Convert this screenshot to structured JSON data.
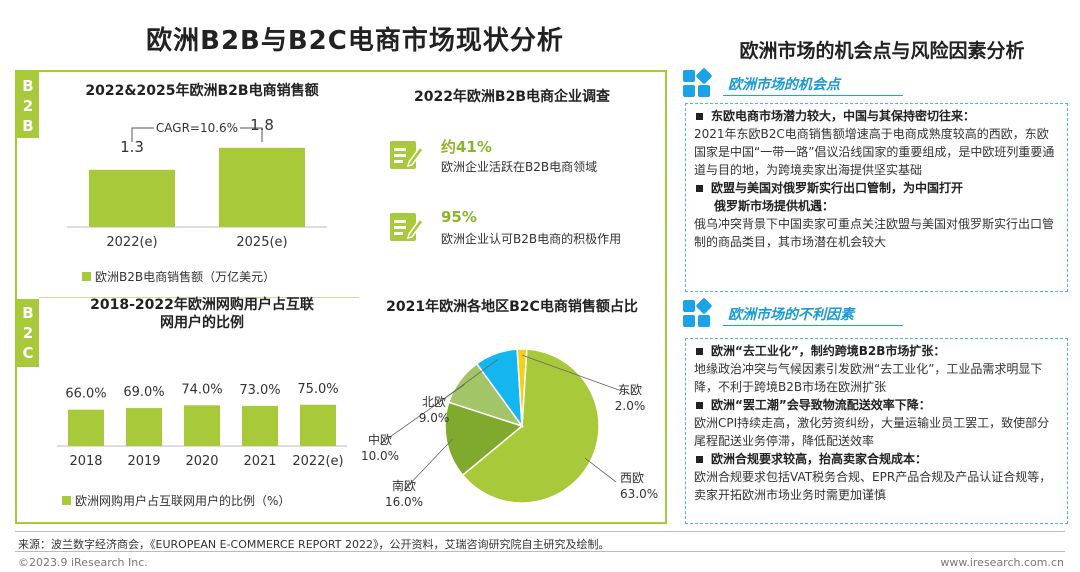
{
  "main_title": "欧洲B2B与B2C电商市场现状分析",
  "right_title": "欧洲市场的机会点与风险因素分析",
  "side_labels": {
    "b2b": [
      "B",
      "2",
      "B"
    ],
    "b2c": [
      "B",
      "2",
      "C"
    ]
  },
  "chart_data": [
    {
      "id": "b2b-sales",
      "type": "bar",
      "title": "2022&2025年欧洲B2B电商销售额",
      "categories": [
        "2022(e)",
        "2025(e)"
      ],
      "values": [
        1.3,
        1.8
      ],
      "value_labels": [
        "1.3",
        "1.8"
      ],
      "annotation": "CAGR=10.6%",
      "legend": "欧洲B2B电商销售额（万亿美元）",
      "ylim": [
        0,
        2.5
      ],
      "color": "#a8c93a"
    },
    {
      "id": "b2c-penetration",
      "type": "bar",
      "title": "2018-2022年欧洲网购用户占互联网用户的比例",
      "title_lines": [
        "2018-2022年欧洲网购用户占互联",
        "网用户的比例"
      ],
      "categories": [
        "2018",
        "2019",
        "2020",
        "2021",
        "2022(e)"
      ],
      "values": [
        66.0,
        69.0,
        74.0,
        73.0,
        75.0
      ],
      "value_labels": [
        "66.0%",
        "69.0%",
        "74.0%",
        "73.0%",
        "75.0%"
      ],
      "legend": "欧洲网购用户占互联网用户的比例（%）",
      "ylim": [
        0,
        100
      ],
      "color": "#a8c93a"
    },
    {
      "id": "b2c-region-share",
      "type": "pie",
      "title": "2021年欧洲各地区B2C电商销售额占比",
      "slices": [
        {
          "name": "西欧",
          "value": 63.0,
          "label": "63.0%",
          "color": "#a8c93a"
        },
        {
          "name": "南欧",
          "value": 16.0,
          "label": "16.0%",
          "color": "#7faa2e"
        },
        {
          "name": "中欧",
          "value": 10.0,
          "label": "10.0%",
          "color": "#a2c567"
        },
        {
          "name": "北欧",
          "value": 9.0,
          "label": "9.0%",
          "color": "#13b6ef"
        },
        {
          "name": "东欧",
          "value": 2.0,
          "label": "2.0%",
          "color": "#f1d21a"
        }
      ]
    }
  ],
  "survey": {
    "title": "2022年欧洲B2B电商企业调查",
    "items": [
      {
        "pct": "约41%",
        "text": "欧洲企业活跃在B2B电商领域"
      },
      {
        "pct": "95%",
        "text": "欧洲企业认可B2B电商的积极作用"
      }
    ]
  },
  "opportunities": {
    "heading": "欧洲市场的机会点",
    "points": [
      {
        "title_lines": [
          "东欧电商市场潜力较大，中国与其保持密切往来："
        ],
        "body": "2021年东欧B2C电商销售额增速高于电商成熟度较高的西欧，东欧国家是中国“一带一路”倡议沿线国家的重要组成，是中欧班列重要通道与目的地，为跨境卖家出海提供坚实基础"
      },
      {
        "title_lines": [
          "欧盟与美国对俄罗斯实行出口管制，为中国打开",
          "俄罗斯市场提供机遇："
        ],
        "body": "俄乌冲突背景下中国卖家可重点关注欧盟与美国对俄罗斯实行出口管制的商品类目，其市场潜在机会较大"
      }
    ]
  },
  "risks": {
    "heading": "欧洲市场的不利因素",
    "points": [
      {
        "title_lines": [
          "欧洲“去工业化”，制约跨境B2B市场扩张："
        ],
        "body": "地缘政治冲突与气候因素引发欧洲“去工业化”，工业品需求明显下降，不利于跨境B2B市场在欧洲扩张"
      },
      {
        "title_lines": [
          "欧洲“罢工潮”会导致物流配送效率下降："
        ],
        "body": "欧洲CPI持续走高，激化劳资纠纷，大量运输业员工罢工，致使部分尾程配送业务停滞，降低配送效率"
      },
      {
        "title_lines": [
          "欧洲合规要求较高，抬高卖家合规成本："
        ],
        "body": "欧洲合规要求包括VAT税务合规、EPR产品合规及产品认证合规等，卖家开拓欧洲市场业务时需更加谨慎"
      }
    ]
  },
  "footer": {
    "source": "来源：波兰数字经济商会，《EUROPEAN E-COMMERCE REPORT 2022》，公开资料，艾瑞咨询研究院自主研究及绘制。",
    "copyright": "©2023.9 iResearch Inc.",
    "url": "www.iresearch.com.cn"
  },
  "colors": {
    "accent_green": "#a8c93a",
    "accent_blue": "#1aa3e8"
  }
}
